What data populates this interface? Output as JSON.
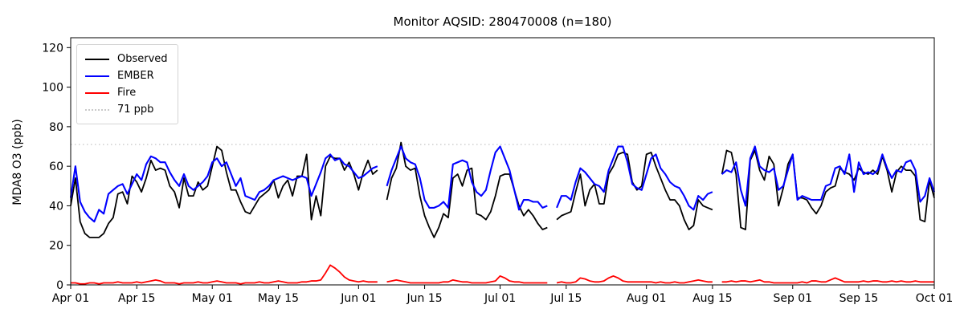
{
  "chart_data": {
    "type": "line",
    "title": "Monitor AQSID: 280470008 (n=180)",
    "ylabel": "MDA8 O3 (ppb)",
    "xlabel": "",
    "grid": false,
    "legend_position": "upper left",
    "ylim": [
      0,
      125
    ],
    "y_ticks": [
      0,
      20,
      40,
      60,
      80,
      100,
      120
    ],
    "x_tick_days": [
      0,
      14,
      30,
      44,
      61,
      75,
      91,
      105,
      122,
      136,
      153,
      167,
      183
    ],
    "x_tick_labels": [
      "Apr 01",
      "Apr 15",
      "May 01",
      "May 15",
      "Jun 01",
      "Jun 15",
      "Jul 01",
      "Jul 15",
      "Aug 01",
      "Aug 15",
      "Sep 01",
      "Sep 15",
      "Oct 01"
    ],
    "x_note": "daily values, day 0 = Apr 01; null = missing day",
    "threshold": {
      "value": 71,
      "label": "71 ppb",
      "color": "#c9c9c9"
    },
    "series": [
      {
        "name": "Observed",
        "color": "#000000",
        "values": [
          40,
          54,
          32,
          26,
          24,
          24,
          24,
          26,
          31,
          34,
          46,
          47,
          41,
          55,
          52,
          47,
          54,
          63,
          58,
          59,
          58,
          50,
          47,
          39,
          54,
          45,
          45,
          52,
          48,
          50,
          60,
          70,
          68,
          57,
          48,
          48,
          42,
          37,
          36,
          40,
          44,
          46,
          48,
          53,
          44,
          50,
          53,
          45,
          55,
          55,
          66,
          33,
          45,
          35,
          60,
          65,
          64,
          64,
          58,
          62,
          56,
          48,
          57,
          63,
          56,
          58,
          null,
          43,
          54,
          59,
          72,
          60,
          58,
          59,
          45,
          35,
          29,
          24,
          29,
          36,
          34,
          54,
          56,
          50,
          58,
          59,
          36,
          35,
          33,
          37,
          45,
          55,
          56,
          56,
          48,
          40,
          35,
          38,
          35,
          31,
          28,
          29,
          null,
          33,
          35,
          36,
          37,
          47,
          56,
          40,
          48,
          51,
          41,
          41,
          56,
          60,
          66,
          67,
          66,
          52,
          48,
          50,
          66,
          67,
          60,
          54,
          48,
          43,
          43,
          40,
          33,
          28,
          30,
          43,
          40,
          39,
          38,
          null,
          56,
          68,
          67,
          56,
          29,
          28,
          63,
          68,
          58,
          53,
          65,
          61,
          40,
          49,
          61,
          66,
          44,
          44,
          43,
          39,
          36,
          40,
          47,
          49,
          50,
          59,
          57,
          56,
          53,
          59,
          57,
          56,
          58,
          56,
          65,
          58,
          47,
          57,
          60,
          58,
          58,
          55,
          33,
          32,
          53,
          44
        ]
      },
      {
        "name": "EMBER",
        "color": "#0000ff",
        "values": [
          44,
          60,
          42,
          37,
          34,
          32,
          38,
          36,
          46,
          48,
          50,
          51,
          46,
          51,
          56,
          53,
          61,
          65,
          64,
          62,
          62,
          57,
          53,
          50,
          56,
          50,
          48,
          50,
          52,
          55,
          62,
          64,
          60,
          62,
          56,
          50,
          54,
          45,
          44,
          43,
          47,
          48,
          50,
          53,
          54,
          55,
          54,
          53,
          54,
          55,
          54,
          45,
          51,
          57,
          64,
          66,
          63,
          64,
          61,
          60,
          57,
          54,
          55,
          57,
          59,
          60,
          null,
          50,
          58,
          64,
          70,
          64,
          62,
          61,
          54,
          43,
          39,
          39,
          40,
          42,
          39,
          61,
          62,
          63,
          62,
          52,
          47,
          45,
          48,
          58,
          67,
          70,
          64,
          58,
          48,
          38,
          43,
          43,
          42,
          42,
          39,
          40,
          null,
          39,
          45,
          45,
          43,
          52,
          59,
          57,
          54,
          51,
          50,
          47,
          58,
          64,
          70,
          70,
          62,
          51,
          49,
          48,
          56,
          64,
          66,
          59,
          56,
          52,
          50,
          49,
          45,
          40,
          38,
          45,
          43,
          46,
          47,
          null,
          56,
          58,
          57,
          62,
          48,
          40,
          64,
          70,
          60,
          58,
          57,
          59,
          48,
          50,
          58,
          66,
          43,
          45,
          44,
          43,
          43,
          43,
          50,
          51,
          59,
          60,
          56,
          66,
          47,
          62,
          56,
          57,
          56,
          58,
          66,
          59,
          54,
          58,
          57,
          62,
          63,
          58,
          42,
          45,
          54,
          47
        ]
      },
      {
        "name": "Fire",
        "color": "#ff0000",
        "values": [
          1,
          1,
          0.5,
          0.5,
          1,
          1,
          0.5,
          1,
          1,
          1,
          1.5,
          1,
          1,
          1,
          1.5,
          1,
          1.5,
          2,
          2.5,
          2,
          1,
          1,
          1,
          0.5,
          1,
          1,
          1,
          1.5,
          1,
          1,
          1.5,
          2,
          1.5,
          1,
          1,
          1,
          0.5,
          1,
          1,
          1,
          1.5,
          1,
          1,
          1.5,
          2,
          1.5,
          1,
          1,
          1,
          1.5,
          1.5,
          2,
          2,
          2.5,
          6,
          10,
          8.5,
          6.5,
          4,
          2.5,
          2,
          1.5,
          2,
          1.5,
          1.5,
          1.5,
          null,
          1.5,
          2,
          2.5,
          2,
          1.5,
          1,
          1,
          1,
          1,
          1,
          1,
          1,
          1.5,
          1.5,
          2.5,
          2,
          1.5,
          1.5,
          1,
          1,
          1,
          1,
          1.5,
          2,
          4.5,
          3.5,
          2,
          1.5,
          1.5,
          1,
          1,
          1,
          1,
          1,
          1,
          null,
          1,
          1.5,
          1,
          1,
          1.5,
          3.5,
          3,
          2,
          1.5,
          1.5,
          2,
          3.5,
          4.5,
          3.5,
          2,
          1.5,
          1.5,
          1.5,
          1.5,
          1.5,
          1.5,
          1,
          1.5,
          1,
          1,
          1.5,
          1,
          1,
          1.5,
          2,
          2.5,
          2,
          1.5,
          1.5,
          null,
          1.5,
          1.5,
          2,
          1.5,
          2,
          2,
          1.5,
          2,
          2.5,
          1.5,
          1.5,
          1,
          1,
          1,
          1,
          1,
          1,
          1.5,
          1,
          2,
          2,
          1.5,
          1.5,
          2.5,
          3.5,
          2.5,
          1.5,
          1.5,
          1.5,
          1.5,
          2,
          1.5,
          2,
          2,
          1.5,
          1.5,
          2,
          1.5,
          2,
          1.5,
          1.5,
          2,
          1.5,
          1.5,
          1.5,
          1.5
        ]
      }
    ]
  }
}
